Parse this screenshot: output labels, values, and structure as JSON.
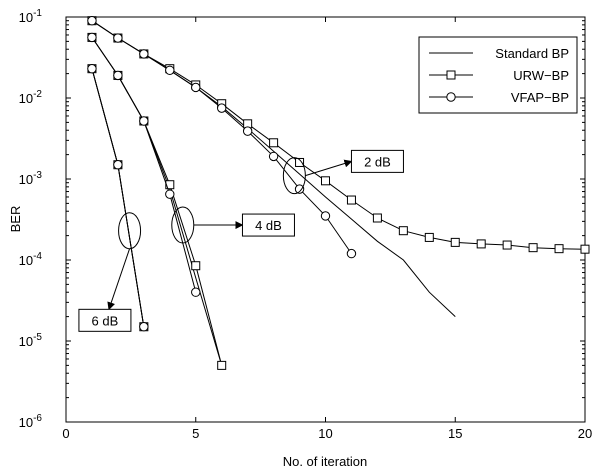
{
  "chart_data": {
    "type": "line",
    "xlabel": "No. of iteration",
    "ylabel": "BER",
    "xlim": [
      0,
      20
    ],
    "ylim": [
      1e-06,
      0.1
    ],
    "yscale": "log",
    "grid": false,
    "legend_position": "top-right",
    "x_ticks": [
      "0",
      "5",
      "10",
      "15",
      "20"
    ],
    "y_ticks": [
      {
        "base": "10",
        "exp": "-6"
      },
      {
        "base": "10",
        "exp": "-5"
      },
      {
        "base": "10",
        "exp": "-4"
      },
      {
        "base": "10",
        "exp": "-3"
      },
      {
        "base": "10",
        "exp": "-2"
      },
      {
        "base": "10",
        "exp": "-1"
      }
    ],
    "legend": [
      {
        "name": "Standard BP",
        "marker": "none"
      },
      {
        "name": "URW−BP",
        "marker": "square"
      },
      {
        "name": "VFAP−BP",
        "marker": "circle"
      }
    ],
    "series": [
      {
        "name": "Standard BP",
        "snr": "2 dB",
        "marker": "none",
        "x": [
          1,
          2,
          3,
          4,
          5,
          6,
          7,
          8,
          9,
          10,
          11,
          12,
          13,
          14,
          15
        ],
        "y": [
          0.09,
          0.055,
          0.035,
          0.022,
          0.0135,
          0.0078,
          0.0042,
          0.0022,
          0.00115,
          0.0006,
          0.00032,
          0.00017,
          0.0001,
          4e-05,
          2e-05
        ]
      },
      {
        "name": "URW−BP",
        "snr": "2 dB",
        "marker": "square",
        "x": [
          1,
          2,
          3,
          4,
          5,
          6,
          7,
          8,
          9,
          10,
          11,
          12,
          13,
          14,
          15,
          16,
          17,
          18,
          19,
          20
        ],
        "y": [
          0.09,
          0.055,
          0.035,
          0.023,
          0.0145,
          0.0085,
          0.0048,
          0.0028,
          0.0016,
          0.00095,
          0.00055,
          0.00033,
          0.00023,
          0.00019,
          0.000165,
          0.000158,
          0.000153,
          0.000142,
          0.000138,
          0.000136
        ]
      },
      {
        "name": "VFAP−BP",
        "snr": "2 dB",
        "marker": "circle",
        "x": [
          1,
          2,
          3,
          4,
          5,
          6,
          7,
          8,
          9,
          10,
          11
        ],
        "y": [
          0.09,
          0.055,
          0.035,
          0.022,
          0.0135,
          0.0075,
          0.0039,
          0.0019,
          0.00075,
          0.00035,
          0.00012
        ]
      },
      {
        "name": "Standard BP",
        "snr": "4 dB",
        "marker": "none",
        "x": [
          1,
          2,
          3,
          4,
          5,
          6
        ],
        "y": [
          0.056,
          0.019,
          0.0052,
          0.00075,
          6e-05,
          5e-06
        ]
      },
      {
        "name": "URW−BP",
        "snr": "4 dB",
        "marker": "square",
        "x": [
          1,
          2,
          3,
          4,
          5,
          6
        ],
        "y": [
          0.056,
          0.019,
          0.0052,
          0.00085,
          8.5e-05,
          5e-06
        ]
      },
      {
        "name": "VFAP−BP",
        "snr": "4 dB",
        "marker": "circle",
        "x": [
          1,
          2,
          3,
          4,
          5
        ],
        "y": [
          0.056,
          0.019,
          0.0052,
          0.00065,
          4e-05
        ]
      },
      {
        "name": "Standard BP",
        "snr": "6 dB",
        "marker": "none",
        "x": [
          1,
          2,
          3
        ],
        "y": [
          0.023,
          0.0015,
          1.5e-05
        ]
      },
      {
        "name": "URW−BP",
        "snr": "6 dB",
        "marker": "square",
        "x": [
          1,
          2,
          3
        ],
        "y": [
          0.023,
          0.0015,
          1.5e-05
        ]
      },
      {
        "name": "VFAP−BP",
        "snr": "6 dB",
        "marker": "circle",
        "x": [
          1,
          2,
          3
        ],
        "y": [
          0.023,
          0.0015,
          1.5e-05
        ]
      }
    ],
    "annotations": [
      {
        "label": "2 dB",
        "ellipse_center": [
          8.8,
          0.0011
        ],
        "label_anchor": [
          11.0,
          0.00165
        ]
      },
      {
        "label": "4 dB",
        "ellipse_center": [
          4.5,
          0.00027
        ],
        "label_anchor": [
          6.8,
          0.00027
        ]
      },
      {
        "label": "6 dB",
        "ellipse_center": [
          2.45,
          0.00023
        ],
        "label_anchor": [
          1.5,
          1.8e-05
        ]
      }
    ]
  }
}
